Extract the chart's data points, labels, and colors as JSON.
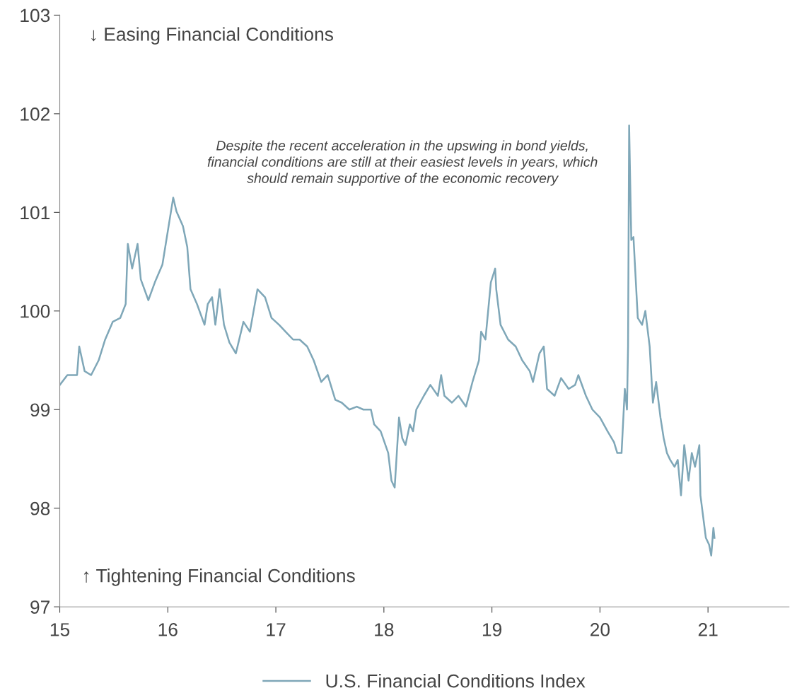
{
  "chart_data": {
    "type": "line",
    "annotations": [
      "↓ Easing Financial Conditions",
      "Despite the recent acceleration in the upswing in bond yields,\nfinancial conditions are still at their easiest levels in years, which\nshould remain supportive of the economic recovery",
      "↑ Tightening Financial Conditions"
    ],
    "series": [
      {
        "name": "U.S. Financial Conditions Index",
        "color": "#7fa7b8",
        "x": [
          2015.0,
          2015.07,
          2015.16,
          2015.18,
          2015.23,
          2015.29,
          2015.36,
          2015.42,
          2015.49,
          2015.56,
          2015.61,
          2015.63,
          2015.67,
          2015.72,
          2015.75,
          2015.82,
          2015.88,
          2015.95,
          2016.05,
          2016.08,
          2016.14,
          2016.18,
          2016.21,
          2016.27,
          2016.34,
          2016.37,
          2016.41,
          2016.44,
          2016.48,
          2016.52,
          2016.57,
          2016.63,
          2016.7,
          2016.76,
          2016.83,
          2016.9,
          2016.96,
          2017.03,
          2017.09,
          2017.16,
          2017.22,
          2017.29,
          2017.35,
          2017.42,
          2017.48,
          2017.55,
          2017.61,
          2017.68,
          2017.75,
          2017.81,
          2017.88,
          2017.91,
          2017.97,
          2018.04,
          2018.07,
          2018.1,
          2018.14,
          2018.17,
          2018.2,
          2018.24,
          2018.27,
          2018.3,
          2018.37,
          2018.43,
          2018.5,
          2018.53,
          2018.56,
          2018.63,
          2018.69,
          2018.76,
          2018.82,
          2018.88,
          2018.9,
          2018.94,
          2018.99,
          2019.03,
          2019.04,
          2019.08,
          2019.15,
          2019.22,
          2019.28,
          2019.35,
          2019.38,
          2019.44,
          2019.48,
          2019.51,
          2019.58,
          2019.64,
          2019.71,
          2019.77,
          2019.8,
          2019.87,
          2019.93,
          2020.0,
          2020.07,
          2020.13,
          2020.16,
          2020.2,
          2020.23,
          2020.25,
          2020.26,
          2020.27,
          2020.29,
          2020.31,
          2020.35,
          2020.39,
          2020.42,
          2020.46,
          2020.49,
          2020.52,
          2020.56,
          2020.59,
          2020.62,
          2020.65,
          2020.69,
          2020.72,
          2020.75,
          2020.78,
          2020.82,
          2020.85,
          2020.88,
          2020.92,
          2020.93,
          2020.98,
          2021.01,
          2021.03,
          2021.05,
          2021.06
        ],
        "values": [
          99.25,
          99.35,
          99.35,
          99.64,
          99.39,
          99.35,
          99.5,
          99.71,
          99.89,
          99.93,
          100.07,
          100.68,
          100.43,
          100.68,
          100.32,
          100.11,
          100.29,
          100.47,
          101.15,
          101.01,
          100.86,
          100.65,
          100.22,
          100.07,
          99.86,
          100.07,
          100.14,
          99.86,
          100.22,
          99.86,
          99.68,
          99.57,
          99.89,
          99.79,
          100.22,
          100.14,
          99.93,
          99.86,
          99.79,
          99.71,
          99.71,
          99.64,
          99.5,
          99.28,
          99.35,
          99.1,
          99.07,
          99.0,
          99.03,
          99.0,
          99.0,
          98.85,
          98.78,
          98.56,
          98.28,
          98.21,
          98.92,
          98.71,
          98.64,
          98.85,
          98.78,
          99.0,
          99.14,
          99.25,
          99.14,
          99.35,
          99.14,
          99.07,
          99.14,
          99.03,
          99.28,
          99.5,
          99.79,
          99.71,
          100.29,
          100.43,
          100.22,
          99.86,
          99.71,
          99.64,
          99.5,
          99.39,
          99.28,
          99.57,
          99.64,
          99.21,
          99.14,
          99.32,
          99.21,
          99.25,
          99.35,
          99.14,
          99.0,
          98.92,
          98.78,
          98.67,
          98.56,
          98.56,
          99.21,
          99.0,
          99.64,
          101.88,
          100.72,
          100.75,
          99.93,
          99.86,
          100.0,
          99.64,
          99.07,
          99.28,
          98.92,
          98.71,
          98.56,
          98.49,
          98.42,
          98.49,
          98.13,
          98.64,
          98.28,
          98.56,
          98.42,
          98.64,
          98.13,
          97.7,
          97.63,
          97.52,
          97.8,
          97.7
        ]
      }
    ],
    "xlim": [
      2015,
      2021.75
    ],
    "xticks": [
      {
        "value": 2015,
        "label": "15"
      },
      {
        "value": 2016,
        "label": "16"
      },
      {
        "value": 2017,
        "label": "17"
      },
      {
        "value": 2018,
        "label": "18"
      },
      {
        "value": 2019,
        "label": "19"
      },
      {
        "value": 2020,
        "label": "20"
      },
      {
        "value": 2021,
        "label": "21"
      }
    ],
    "ylim": [
      97,
      103
    ],
    "yticks": [
      97,
      98,
      99,
      100,
      101,
      102,
      103
    ],
    "grid": false,
    "legend": "bottom",
    "marker": "none",
    "line_style": "solid"
  }
}
